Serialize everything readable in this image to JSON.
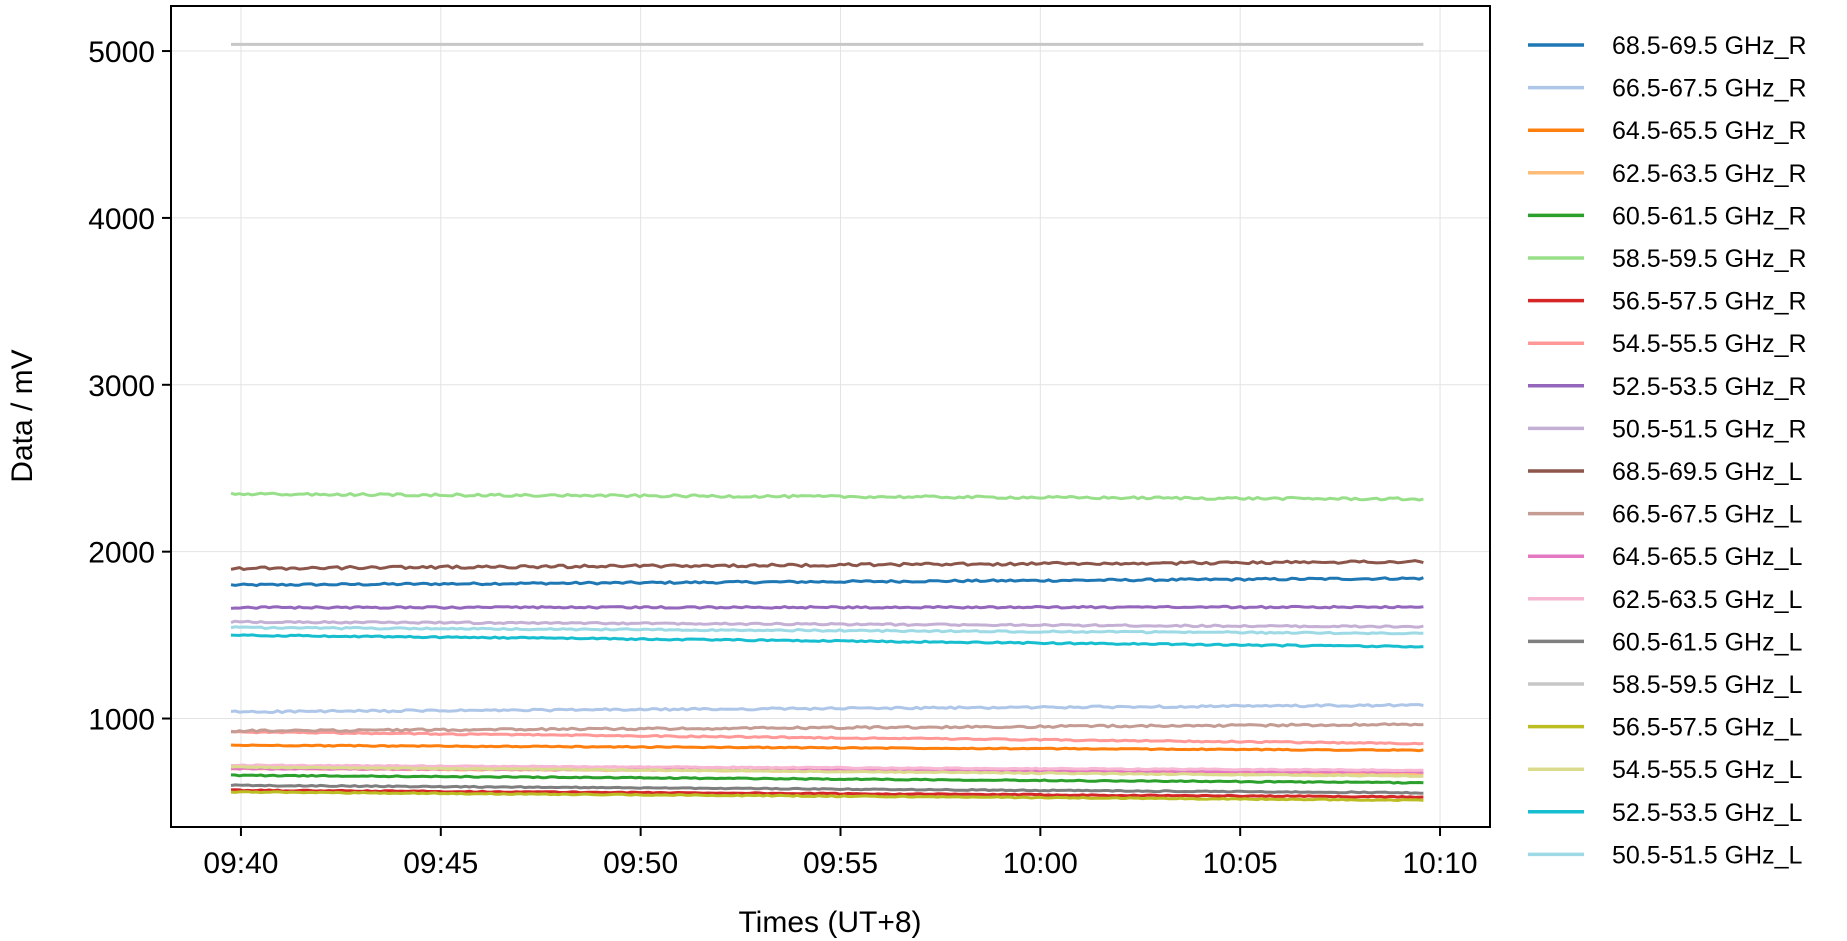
{
  "chart_data": {
    "type": "line",
    "title": "",
    "xlabel": "Times (UT+8)",
    "ylabel": "Data / mV",
    "x_ticks": [
      "09:40",
      "09:45",
      "09:50",
      "09:55",
      "10:00",
      "10:05",
      "10:10"
    ],
    "x_tick_minutes": [
      0,
      5,
      10,
      15,
      20,
      25,
      30
    ],
    "x_start": "09:39:45",
    "x_end": "10:09:35",
    "y_ticks": [
      1000,
      2000,
      3000,
      4000,
      5000
    ],
    "ylim": [
      350,
      5270
    ],
    "xlim": [
      "09:38:15",
      "10:11:15"
    ],
    "grid": true,
    "legend_position": "outside-right",
    "series": [
      {
        "name": "68.5-69.5 GHz_R",
        "color": "#1f77b4",
        "start": 1800,
        "end": 1840,
        "noise": 6
      },
      {
        "name": "66.5-67.5 GHz_R",
        "color": "#aec7e8",
        "start": 1040,
        "end": 1080,
        "noise": 6
      },
      {
        "name": "64.5-65.5 GHz_R",
        "color": "#ff7f0e",
        "start": 840,
        "end": 810,
        "noise": 3
      },
      {
        "name": "62.5-63.5 GHz_R",
        "color": "#ffbb78",
        "start": 700,
        "end": 670,
        "noise": 3
      },
      {
        "name": "60.5-61.5 GHz_R",
        "color": "#2ca02c",
        "start": 660,
        "end": 615,
        "noise": 3
      },
      {
        "name": "58.5-59.5 GHz_R",
        "color": "#98df8a",
        "start": 2345,
        "end": 2315,
        "noise": 7
      },
      {
        "name": "56.5-57.5 GHz_R",
        "color": "#d62728",
        "start": 570,
        "end": 530,
        "noise": 3
      },
      {
        "name": "54.5-55.5 GHz_R",
        "color": "#ff9896",
        "start": 920,
        "end": 850,
        "noise": 4
      },
      {
        "name": "52.5-53.5 GHz_R",
        "color": "#9467bd",
        "start": 1665,
        "end": 1668,
        "noise": 5
      },
      {
        "name": "50.5-51.5 GHz_R",
        "color": "#c5b0d5",
        "start": 1580,
        "end": 1550,
        "noise": 5
      },
      {
        "name": "68.5-69.5 GHz_L",
        "color": "#8c564b",
        "start": 1900,
        "end": 1940,
        "noise": 8
      },
      {
        "name": "66.5-67.5 GHz_L",
        "color": "#c49c94",
        "start": 925,
        "end": 965,
        "noise": 6
      },
      {
        "name": "64.5-65.5 GHz_L",
        "color": "#e377c2",
        "start": 700,
        "end": 680,
        "noise": 3
      },
      {
        "name": "62.5-63.5 GHz_L",
        "color": "#f7b6d2",
        "start": 720,
        "end": 690,
        "noise": 3
      },
      {
        "name": "60.5-61.5 GHz_L",
        "color": "#7f7f7f",
        "start": 600,
        "end": 555,
        "noise": 3
      },
      {
        "name": "58.5-59.5 GHz_L",
        "color": "#c7c7c7",
        "start": 5040,
        "end": 5040,
        "noise": 0
      },
      {
        "name": "56.5-57.5 GHz_L",
        "color": "#bcbd22",
        "start": 560,
        "end": 510,
        "noise": 3
      },
      {
        "name": "54.5-55.5 GHz_L",
        "color": "#dbdb8d",
        "start": 710,
        "end": 655,
        "noise": 3
      },
      {
        "name": "52.5-53.5 GHz_L",
        "color": "#17becf",
        "start": 1500,
        "end": 1430,
        "noise": 4
      },
      {
        "name": "50.5-51.5 GHz_L",
        "color": "#9edae5",
        "start": 1545,
        "end": 1510,
        "noise": 5
      }
    ]
  }
}
